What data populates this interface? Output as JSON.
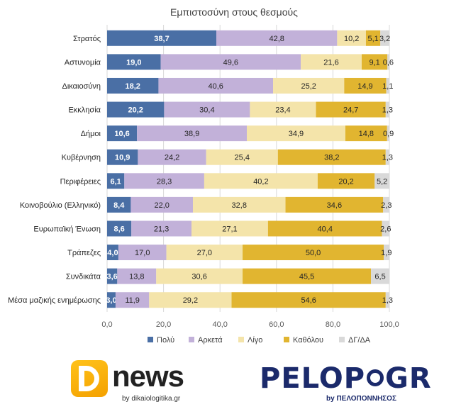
{
  "chart_data": {
    "type": "bar",
    "orientation": "horizontal",
    "stacked": true,
    "title": "Εμπιστοσύνη στους θεσμούς",
    "categories": [
      "Στρατός",
      "Αστυνομία",
      "Δικαιοσύνη",
      "Εκκλησία",
      "Δήμοι",
      "Κυβέρνηση",
      "Περιφέρειες",
      "Κοινοβούλιο (Ελληνικό)",
      "Ευρωπαϊκή Ένωση",
      "Τράπεζες",
      "Συνδικάτα",
      "Μέσα μαζικής ενημέρωσης"
    ],
    "series": [
      {
        "name": "Πολύ",
        "color": "#4a6fa5",
        "values": [
          38.7,
          19.0,
          18.2,
          20.2,
          10.6,
          10.9,
          6.1,
          8.4,
          8.6,
          4.0,
          3.6,
          3.0
        ],
        "labels": [
          "38,7",
          "19,0",
          "18,2",
          "20,2",
          "10,6",
          "10,9",
          "6,1",
          "8,4",
          "8,6",
          "4,0",
          "3,6",
          "3,0"
        ]
      },
      {
        "name": "Αρκετά",
        "color": "#c2b1d9",
        "values": [
          42.8,
          49.6,
          40.6,
          30.4,
          38.9,
          24.2,
          28.3,
          22.0,
          21.3,
          17.0,
          13.8,
          11.9
        ],
        "labels": [
          "42,8",
          "49,6",
          "40,6",
          "30,4",
          "38,9",
          "24,2",
          "28,3",
          "22,0",
          "21,3",
          "17,0",
          "13,8",
          "11,9"
        ]
      },
      {
        "name": "Λίγο",
        "color": "#f4e4aa",
        "values": [
          10.2,
          21.6,
          25.2,
          23.4,
          34.9,
          25.4,
          40.2,
          32.8,
          27.1,
          27.0,
          30.6,
          29.2
        ],
        "labels": [
          "10,2",
          "21,6",
          "25,2",
          "23,4",
          "34,9",
          "25,4",
          "40,2",
          "32,8",
          "27,1",
          "27,0",
          "30,6",
          "29,2"
        ]
      },
      {
        "name": "Καθόλου",
        "color": "#e1b530",
        "values": [
          5.1,
          9.1,
          14.9,
          24.7,
          14.8,
          38.2,
          20.2,
          34.6,
          40.4,
          50.0,
          45.5,
          54.6
        ],
        "labels": [
          "5,1",
          "9,1",
          "14,9",
          "24,7",
          "14,8",
          "38,2",
          "20,2",
          "34,6",
          "40,4",
          "50,0",
          "45,5",
          "54,6"
        ]
      },
      {
        "name": "ΔΓ/ΔΑ",
        "color": "#d9d9d9",
        "values": [
          3.2,
          0.6,
          1.1,
          1.3,
          0.9,
          1.3,
          5.2,
          2.3,
          2.6,
          1.9,
          6.5,
          1.3
        ],
        "labels": [
          "3,2",
          "0,6",
          "1,1",
          "1,3",
          "0,9",
          "1,3",
          "5,2",
          "2,3",
          "2,6",
          "1,9",
          "6,5",
          "1,3"
        ]
      }
    ],
    "xlim": [
      0,
      100
    ],
    "xticks": [
      "0,0",
      "20,0",
      "40,0",
      "60,0",
      "80,0",
      "100,0"
    ],
    "grid": true,
    "legend_position": "bottom"
  },
  "logos": {
    "left": {
      "word": "news",
      "subtitle": "by dikaiologitika.gr"
    },
    "right": {
      "word_start": "PELOP",
      "word_end": "GR",
      "subtitle": "by ΠΕΛΟΠΟΝΝΗΣΟΣ"
    }
  }
}
